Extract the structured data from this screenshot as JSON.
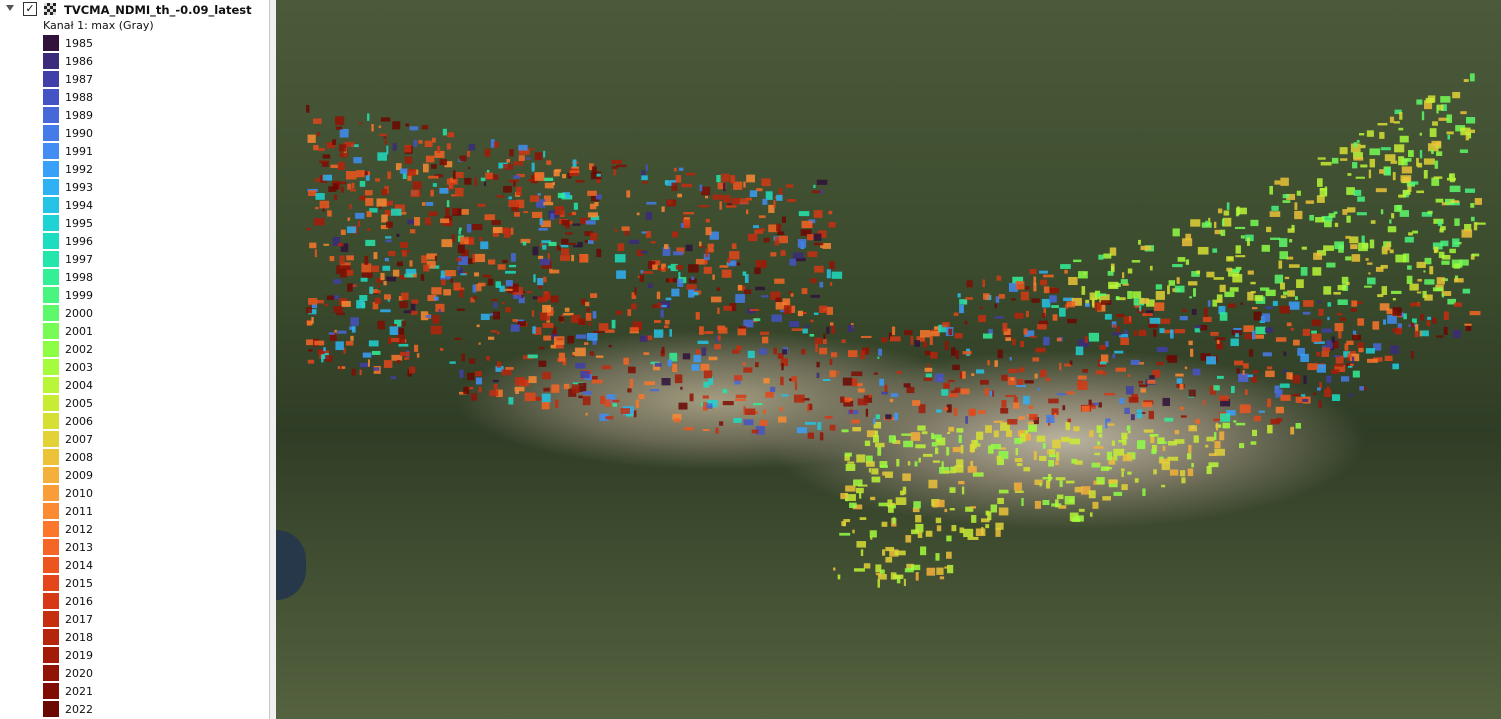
{
  "layer": {
    "name": "TVCMA_NDMI_th_-0.09_latest",
    "band": "Kanał 1: max (Gray)",
    "legend": [
      {
        "label": "1985",
        "color": "#30123b"
      },
      {
        "label": "1986",
        "color": "#3b2b7a"
      },
      {
        "label": "1987",
        "color": "#4040a8"
      },
      {
        "label": "1988",
        "color": "#4454c4"
      },
      {
        "label": "1989",
        "color": "#4668d9"
      },
      {
        "label": "1990",
        "color": "#457be8"
      },
      {
        "label": "1991",
        "color": "#418df3"
      },
      {
        "label": "1992",
        "color": "#39a0fa"
      },
      {
        "label": "1993",
        "color": "#2fb2f4"
      },
      {
        "label": "1994",
        "color": "#25c3e6"
      },
      {
        "label": "1995",
        "color": "#1fd2d4"
      },
      {
        "label": "1996",
        "color": "#1edcc0"
      },
      {
        "label": "1997",
        "color": "#24e6ab"
      },
      {
        "label": "1998",
        "color": "#33ef96"
      },
      {
        "label": "1999",
        "color": "#47f57f"
      },
      {
        "label": "2000",
        "color": "#5ef96a"
      },
      {
        "label": "2001",
        "color": "#77fc55"
      },
      {
        "label": "2002",
        "color": "#8efe45"
      },
      {
        "label": "2003",
        "color": "#a4fc3c"
      },
      {
        "label": "2004",
        "color": "#b8f637"
      },
      {
        "label": "2005",
        "color": "#c8ec34"
      },
      {
        "label": "2006",
        "color": "#d6e034"
      },
      {
        "label": "2007",
        "color": "#e2d236"
      },
      {
        "label": "2008",
        "color": "#ecc238"
      },
      {
        "label": "2009",
        "color": "#f4b03a"
      },
      {
        "label": "2010",
        "color": "#f99d38"
      },
      {
        "label": "2011",
        "color": "#fb8a33"
      },
      {
        "label": "2012",
        "color": "#fa772c"
      },
      {
        "label": "2013",
        "color": "#f56525"
      },
      {
        "label": "2014",
        "color": "#ed551f"
      },
      {
        "label": "2015",
        "color": "#e2461a"
      },
      {
        "label": "2016",
        "color": "#d53915"
      },
      {
        "label": "2017",
        "color": "#c62e10"
      },
      {
        "label": "2018",
        "color": "#b5240c"
      },
      {
        "label": "2019",
        "color": "#a31b08"
      },
      {
        "label": "2020",
        "color": "#911305"
      },
      {
        "label": "2021",
        "color": "#7f0d03"
      },
      {
        "label": "2022",
        "color": "#6b0802"
      }
    ]
  }
}
